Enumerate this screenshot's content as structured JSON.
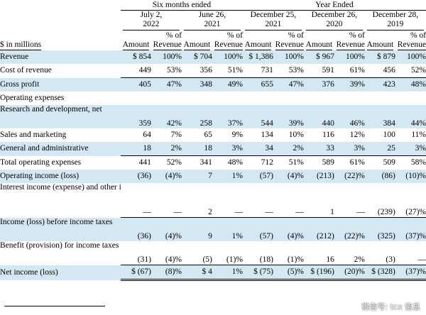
{
  "header": {
    "groups": [
      {
        "label": "Six months ended",
        "span": 4
      },
      {
        "label": "Year Ended",
        "span": 6
      }
    ],
    "periods": [
      {
        "line1": "July 2,",
        "line2": "2022"
      },
      {
        "line1": "June 26,",
        "line2": "2021"
      },
      {
        "line1": "December 25,",
        "line2": "2021"
      },
      {
        "line1": "December 26,",
        "line2": "2020"
      },
      {
        "line1": "December 28,",
        "line2": "2019"
      }
    ],
    "units_label": "$ in millions",
    "amount_label": "Amount",
    "pct_label_line1": "% of",
    "pct_label_line2": "Revenue"
  },
  "rows": [
    {
      "label": "Revenue",
      "height": 1,
      "shade": true,
      "cells": [
        "$ 854",
        "100%",
        "$ 704",
        "100%",
        "$ 1,386",
        "100%",
        "$ 967",
        "100%",
        "$ 879",
        "100%"
      ]
    },
    {
      "label": "Cost of revenue",
      "height": 1,
      "shade": false,
      "cells": [
        "449",
        "53%",
        "356",
        "51%",
        "731",
        "53%",
        "591",
        "61%",
        "456",
        "52%"
      ]
    },
    {
      "label": "Gross profit",
      "height": 1,
      "shade": true,
      "top_rule": true,
      "cells": [
        "405",
        "47%",
        "348",
        "49%",
        "655",
        "47%",
        "376",
        "39%",
        "423",
        "48%"
      ]
    },
    {
      "label": "Operating expenses",
      "height": 1,
      "shade": false,
      "cells": [
        "",
        "",
        "",
        "",
        "",
        "",
        "",
        "",
        "",
        ""
      ]
    },
    {
      "label": "Research and development, net",
      "height": 2,
      "shade": true,
      "cells": [
        "359",
        "42%",
        "258",
        "37%",
        "544",
        "39%",
        "440",
        "46%",
        "384",
        "44%"
      ]
    },
    {
      "label": "Sales and marketing",
      "height": 1,
      "shade": false,
      "cells": [
        "64",
        "7%",
        "65",
        "9%",
        "134",
        "10%",
        "116",
        "12%",
        "100",
        "11%"
      ]
    },
    {
      "label": "General and administrative",
      "height": 1,
      "shade": true,
      "cells": [
        "18",
        "2%",
        "18",
        "3%",
        "34",
        "2%",
        "33",
        "3%",
        "25",
        "3%"
      ]
    },
    {
      "label": "Total operating expenses",
      "height": 1,
      "shade": false,
      "top_rule": true,
      "cells": [
        "441",
        "52%",
        "341",
        "48%",
        "712",
        "51%",
        "589",
        "61%",
        "509",
        "58%"
      ]
    },
    {
      "label": "Operating income (loss)",
      "height": 1,
      "shade": true,
      "cells": [
        "(36)",
        "(4)%",
        "7",
        "1%",
        "(57)",
        "(4)%",
        "(213)",
        "(22)%",
        "(86)",
        "(10)%"
      ]
    },
    {
      "label": "Interest income (expense) and other income (expense), net",
      "height": 3,
      "shade": false,
      "cells": [
        "—",
        "—",
        "2",
        "—",
        "—",
        "—",
        "1",
        "—",
        "(239)",
        "(27)%"
      ]
    },
    {
      "label": "Income (loss) before income taxes",
      "height": 2,
      "shade": true,
      "top_rule": true,
      "cells": [
        "(36)",
        "(4)%",
        "9",
        "1%",
        "(57)",
        "(4)%",
        "(212)",
        "(22)%",
        "(325)",
        "(37)%"
      ]
    },
    {
      "label": "Benefit (provision) for income taxes",
      "height": 2,
      "shade": false,
      "cells": [
        "(31)",
        "(4)%",
        "(5)",
        "(1)%",
        "(18)",
        "(1)%",
        "16",
        "2%",
        "(3)",
        "—"
      ]
    },
    {
      "label": "Net income (loss)",
      "height": 1,
      "shade": true,
      "top_rule": true,
      "double_rule": true,
      "cells": [
        "$ (67)",
        "(8)%",
        "$ 4",
        "1%",
        "$ (75)",
        "(5)%",
        "$ (196)",
        "(20)%",
        "$ (328)",
        "(37)%"
      ]
    }
  ],
  "watermark": "微信号: tcx 信息",
  "colors": {
    "row_shade": "#d4e8f3",
    "text": "#000000"
  }
}
